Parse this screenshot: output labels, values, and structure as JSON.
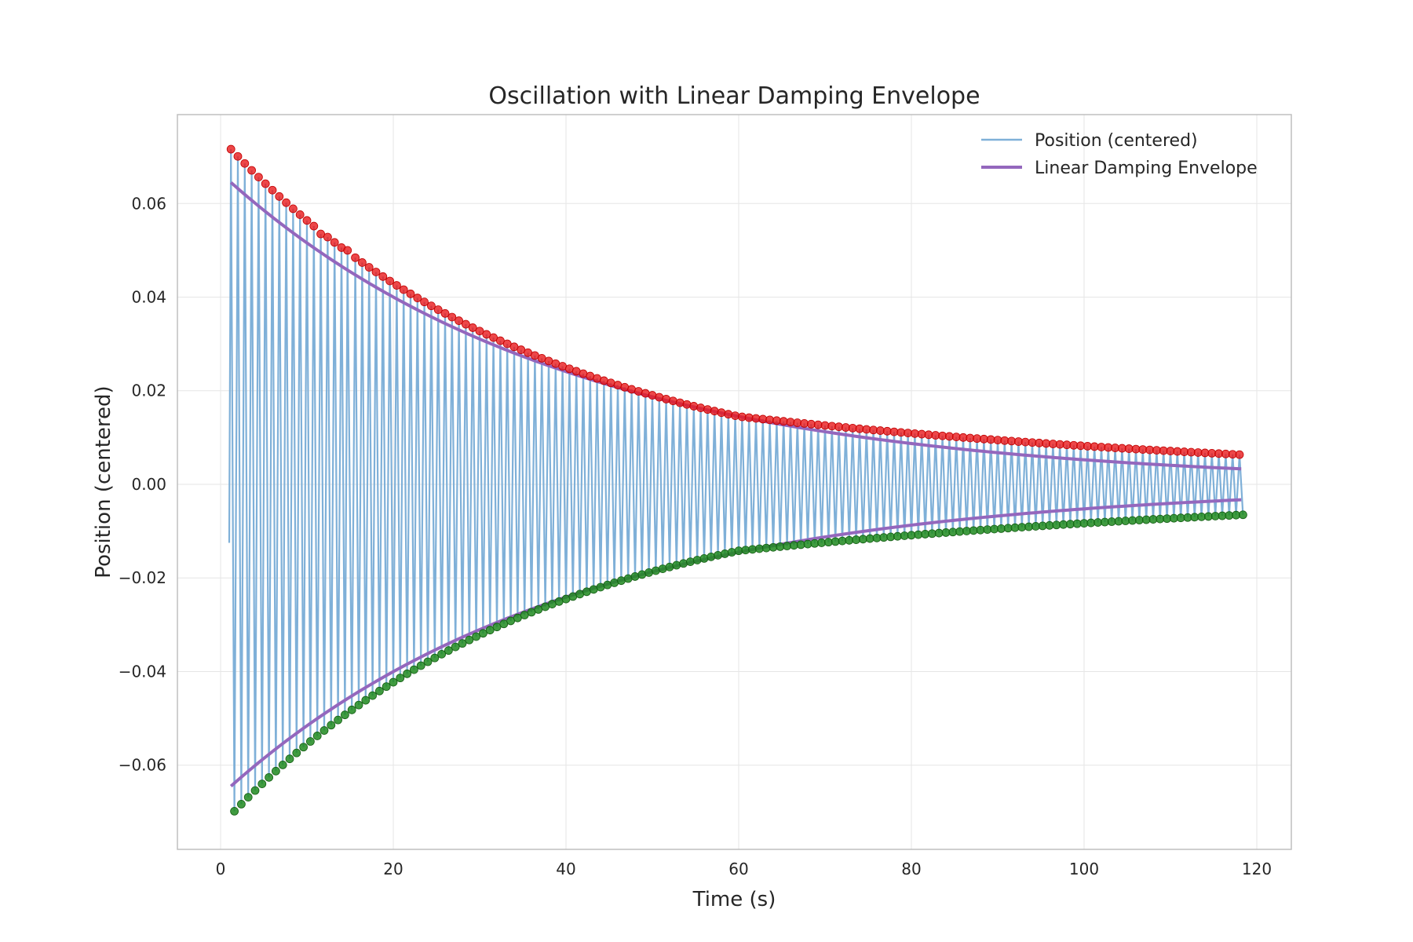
{
  "chart_data": {
    "type": "line",
    "title": "Oscillation with Linear Damping Envelope",
    "xlabel": "Time (s)",
    "ylabel": "Position (centered)",
    "xlim": [
      -5,
      124
    ],
    "ylim": [
      -0.078,
      0.079
    ],
    "x_ticks": [
      0,
      20,
      40,
      60,
      80,
      100,
      120
    ],
    "x_tick_labels": [
      "0",
      "20",
      "40",
      "60",
      "80",
      "100",
      "120"
    ],
    "y_ticks": [
      -0.06,
      -0.04,
      -0.02,
      0.0,
      0.02,
      0.04,
      0.06
    ],
    "y_tick_labels": [
      "−0.06",
      "−0.04",
      "−0.02",
      "0.00",
      "0.02",
      "0.04",
      "0.06"
    ],
    "grid": true,
    "legend_position": "top-right",
    "signal": {
      "t_start": 1.0,
      "t_end": 118.5,
      "period": 0.8,
      "initial_value": -0.0125,
      "peak_start": 0.072,
      "peak_mid": 0.0145,
      "peak_end": 0.0063,
      "trough_start": -0.071,
      "trough_mid": -0.0142,
      "trough_end": -0.0065
    },
    "outlier_peaks": [
      {
        "x": 11.6,
        "y": 0.0535
      },
      {
        "x": 14.7,
        "y": 0.05
      }
    ],
    "series": [
      {
        "name": "Position (centered)",
        "color": "#7fb0d8",
        "style": "thin-line"
      },
      {
        "name": "Linear Damping Envelope",
        "color": "#9467bd",
        "style": "thick-line",
        "values": {
          "x_start": 1.2,
          "x_end": 118.2,
          "amp_start": 0.0645,
          "amp_x60": 0.0145,
          "amp_end": 0.0033
        }
      },
      {
        "role": "peaks",
        "color": "#e8191c",
        "style": "markers"
      },
      {
        "role": "troughs",
        "color": "#1f8a1f",
        "style": "markers"
      }
    ]
  }
}
